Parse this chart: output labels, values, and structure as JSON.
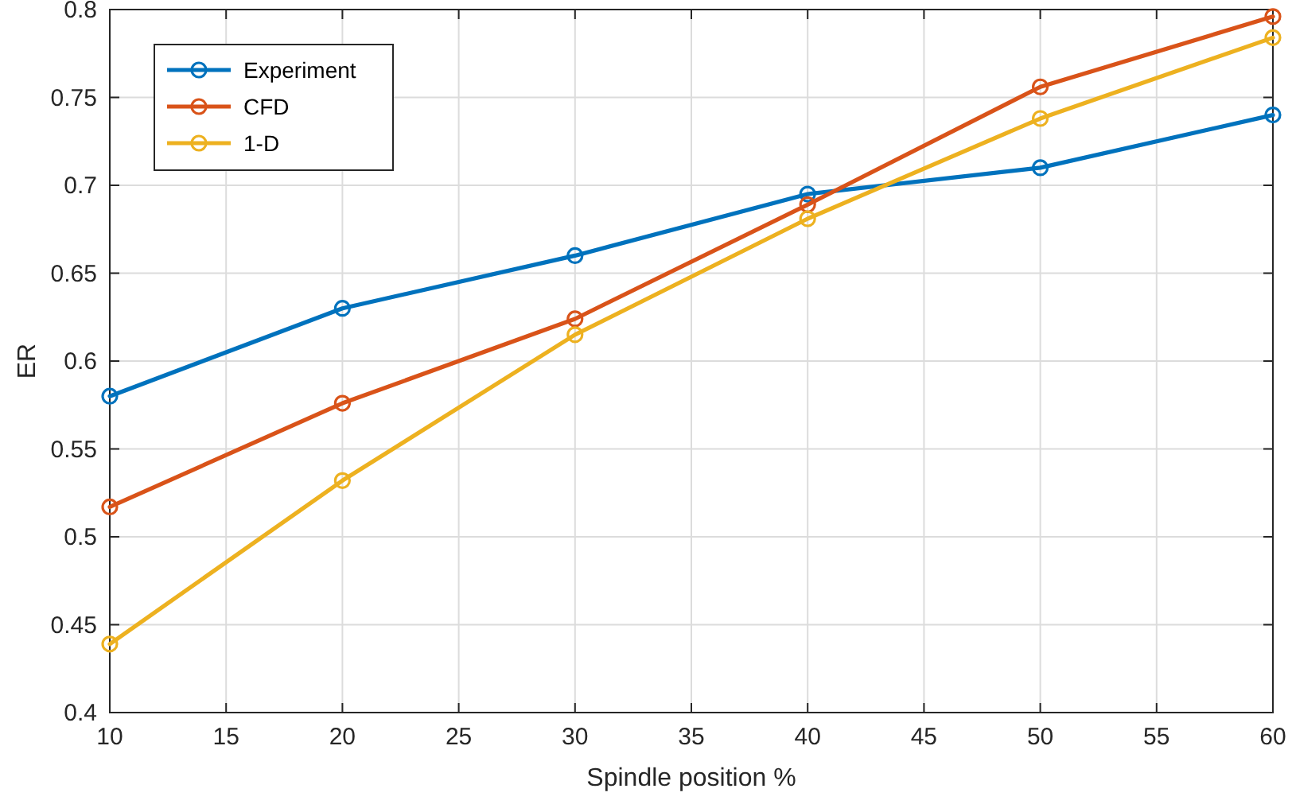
{
  "chart_data": {
    "type": "line",
    "xlabel": "Spindle position %",
    "ylabel": "ER",
    "x": [
      10,
      20,
      30,
      40,
      50,
      60
    ],
    "series": [
      {
        "name": "Experiment",
        "color": "#0072bd",
        "values": [
          0.58,
          0.63,
          0.66,
          0.695,
          0.71,
          0.74
        ]
      },
      {
        "name": "CFD",
        "color": "#d95319",
        "values": [
          0.517,
          0.576,
          0.624,
          0.689,
          0.756,
          0.796
        ]
      },
      {
        "name": "1-D",
        "color": "#edb120",
        "values": [
          0.439,
          0.532,
          0.615,
          0.681,
          0.738,
          0.784
        ]
      }
    ],
    "xlim": [
      10,
      60
    ],
    "xticks": [
      10,
      15,
      20,
      25,
      30,
      35,
      40,
      45,
      50,
      55,
      60
    ],
    "ylim": [
      0.4,
      0.8
    ],
    "yticks": [
      0.4,
      0.45,
      0.5,
      0.55,
      0.6,
      0.65,
      0.7,
      0.75,
      0.8
    ],
    "grid": true,
    "legend": "top left",
    "marker": "circle",
    "line_style": "solid"
  }
}
